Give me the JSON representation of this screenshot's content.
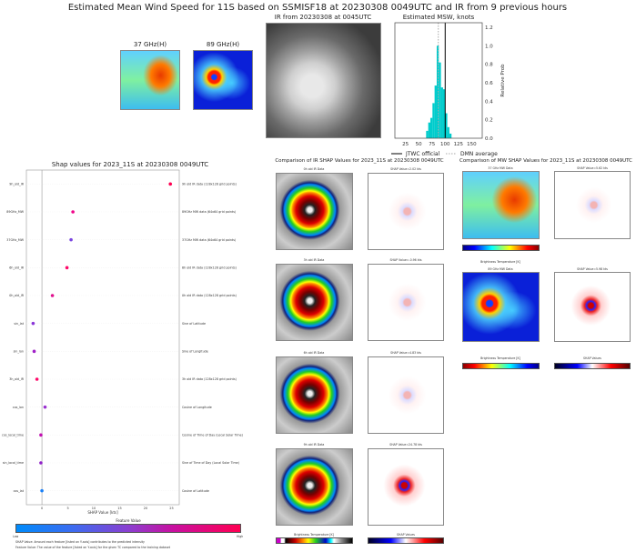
{
  "title": "Estimated Mean Wind Speed for 11S based on SSMISF18 at 20230308 0049UTC and IR from 9 previous hours",
  "top": {
    "mw37_title": "37 GHz(H)",
    "mw89_title": "89 GHz(H)",
    "ir_title": "IR from 20230308 at 0045UTC"
  },
  "chart_data": [
    {
      "type": "bar",
      "title": "Estimated MSW, knots",
      "ylabel": "Relative Prob",
      "xlim": [
        5,
        170
      ],
      "ylim": [
        0,
        1.25
      ],
      "x_ticks": [
        "25",
        "50",
        "75",
        "100",
        "125",
        "150"
      ],
      "y_ticks": [
        "0.0",
        "0.2",
        "0.4",
        "0.6",
        "0.8",
        "1.0",
        "1.2"
      ],
      "bins": [
        [
          64,
          68
        ],
        [
          68,
          72
        ],
        [
          72,
          76
        ],
        [
          76,
          80
        ],
        [
          80,
          84
        ],
        [
          84,
          88
        ],
        [
          88,
          92
        ],
        [
          92,
          96
        ],
        [
          96,
          100
        ],
        [
          100,
          104
        ],
        [
          104,
          108
        ],
        [
          108,
          112
        ]
      ],
      "values": [
        0.08,
        0.17,
        0.22,
        0.38,
        0.57,
        1.0,
        0.82,
        0.55,
        0.53,
        0.27,
        0.12,
        0.05
      ],
      "bar_color": "#00cccc",
      "jtwc_official": 100,
      "dmn_average": 87,
      "legend": [
        "JTWC official",
        "DMN average"
      ],
      "legend_placement": "bottom"
    },
    {
      "type": "scatter",
      "title": "Shap values for 2023_11S at 20230308 0049UTC",
      "xlabel": "SHAP Value [kts]",
      "xlim": [
        -3,
        26.5
      ],
      "x_ticks": [
        "0",
        "5",
        "10",
        "15",
        "20",
        "25"
      ],
      "features": [
        {
          "name": "9h_old_IR",
          "desc": "9h old IR data (128x128 grid points)",
          "value": 24.78,
          "color": "#ff0052"
        },
        {
          "name": "89GHz_MW",
          "desc": "89GHz MW data (64x64 grid points)",
          "value": 5.98,
          "color": "#f0058a"
        },
        {
          "name": "37GHz_MW",
          "desc": "37GHz MW data (64x64 grid points)",
          "value": 5.62,
          "color": "#7a45e0"
        },
        {
          "name": "6h_old_IR",
          "desc": "6h old IR data (128x128 grid points)",
          "value": 4.83,
          "color": "#ff0a6a"
        },
        {
          "name": "0h_old_IR",
          "desc": "0h old IR data (128x128 grid points)",
          "value": 2.02,
          "color": "#e0108e"
        },
        {
          "name": "sin_lat",
          "desc": "Sine of Latitude",
          "value": -1.7,
          "color": "#8a35d8"
        },
        {
          "name": "sin_lon",
          "desc": "Sine of Longitude",
          "value": -1.5,
          "color": "#a020c8"
        },
        {
          "name": "3h_old_IR",
          "desc": "3h old IR data (128x128 grid points)",
          "value": -0.96,
          "color": "#ff0a6a"
        },
        {
          "name": "cos_lon",
          "desc": "Cosine of Longitude",
          "value": 0.6,
          "color": "#9a30d0"
        },
        {
          "name": "cos_local_time",
          "desc": "Cosine of Time of Day (Local Solar Time)",
          "value": -0.2,
          "color": "#c010b0"
        },
        {
          "name": "sin_local_time",
          "desc": "Sine of Time of Day (Local Solar Time)",
          "value": -0.2,
          "color": "#9020c8"
        },
        {
          "name": "cos_lat",
          "desc": "Cosine of Latitude",
          "value": 0.0,
          "color": "#1880f8"
        }
      ],
      "colorbar": {
        "title": "Feature Value",
        "low": "Low",
        "high": "High"
      },
      "notes": [
        "SHAP Value: Amount each feature [listed on Y-axis] contributes to the predicted intensity",
        "Feature Value: The value of the feature [listed on Y-axis] for the given TC compared to the training dataset"
      ]
    }
  ],
  "ir_compare": {
    "title": "Comparison of IR SHAP Values for 2023_11S at 20230308 0049UTC",
    "rows": [
      {
        "data_title": "0h old IR Data",
        "shap_title": "SHAP Value=2.02 kts"
      },
      {
        "data_title": "3h old IR Data",
        "shap_title": "SHAP Value=-0.96 kts"
      },
      {
        "data_title": "6h old IR Data",
        "shap_title": "SHAP Value=4.83 kts"
      },
      {
        "data_title": "9h old IR Data",
        "shap_title": "SHAP Value=24.78 kts"
      }
    ],
    "cbar_left_label": "Brightness Temperature [K]",
    "cbar_right_label": "SHAP Values"
  },
  "mw_compare": {
    "title": "Comparison of MW SHAP Values for 2023_11S at 20230308 0049UTC",
    "rows": [
      {
        "data_title": "37 GHz MW Data",
        "shap_title": "SHAP Value=5.62 kts",
        "cbar_label": "Brightness Temperature [K]"
      },
      {
        "data_title": "89 GHz MW Data",
        "shap_title": "SHAP Value=5.98 kts",
        "cbar_label": "Brightness Temperature [K]"
      }
    ],
    "shap_cbar_label": "SHAP Values"
  }
}
